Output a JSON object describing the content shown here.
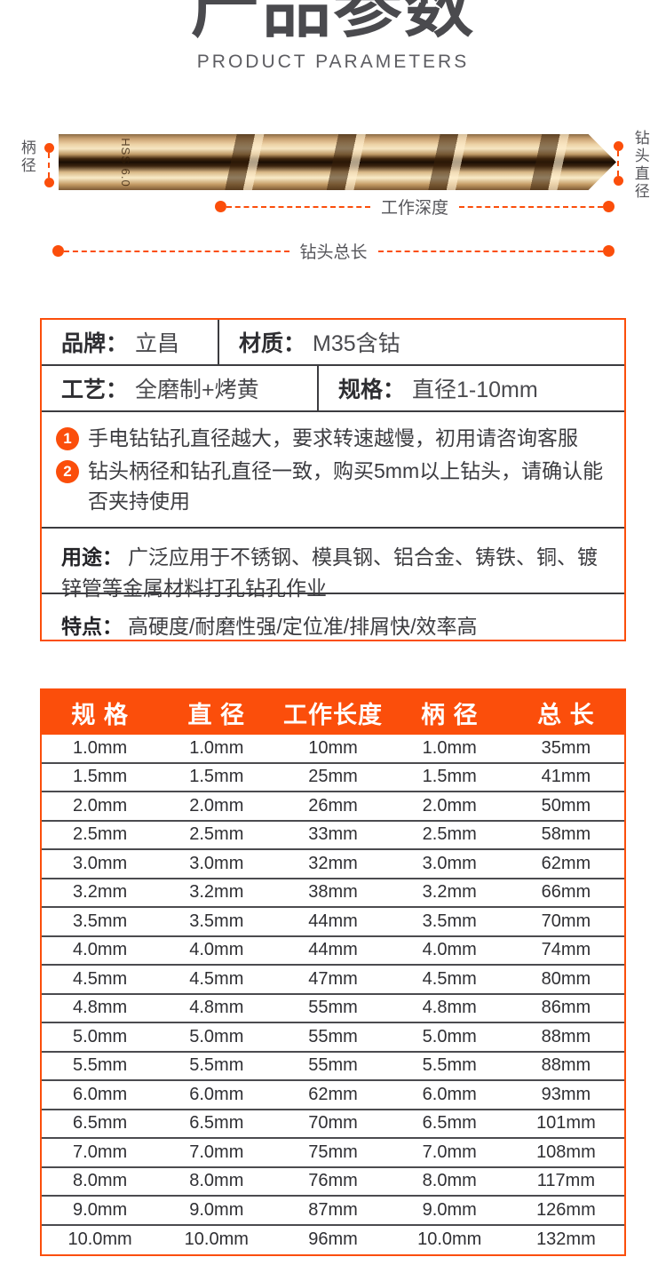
{
  "colors": {
    "accent": "#fb4e0b",
    "title": "#4a4a4e",
    "row_divider": "#4b4b4f"
  },
  "header": {
    "title": "产品参数",
    "subtitle": "PRODUCT PARAMETERS"
  },
  "diagram": {
    "shank_diameter_label": "柄径",
    "tip_diameter_label": "钻头直径",
    "working_depth_label": "工作深度",
    "total_length_label": "钻头总长",
    "bit_marking": "HSS 6.0"
  },
  "info": {
    "brand_label": "品牌：",
    "brand_value": "立昌",
    "material_label": "材质：",
    "material_value": "M35含钴",
    "process_label": "工艺：",
    "process_value": "全磨制+烤黄",
    "spec_label": "规格：",
    "spec_value": "直径1-10mm",
    "notes": [
      {
        "num": "1",
        "text": "手电钻钻孔直径越大，要求转速越慢，初用请咨询客服"
      },
      {
        "num": "2",
        "text": "钻头柄径和钻孔直径一致，购买5mm以上钻头，请确认能否夹持使用"
      }
    ],
    "usage_label": "用途：",
    "usage_value": "广泛应用于不锈钢、模具钢、铝合金、铸铁、铜、镀锌管等金属材料打孔钻孔作业",
    "features_label": "特点：",
    "features_value": "高硬度/耐磨性强/定位准/排屑快/效率高"
  },
  "spec_table": {
    "headers": [
      "规 格",
      "直 径",
      "工作长度",
      "柄 径",
      "总 长"
    ],
    "rows": [
      [
        "1.0mm",
        "1.0mm",
        "10mm",
        "1.0mm",
        "35mm"
      ],
      [
        "1.5mm",
        "1.5mm",
        "25mm",
        "1.5mm",
        "41mm"
      ],
      [
        "2.0mm",
        "2.0mm",
        "26mm",
        "2.0mm",
        "50mm"
      ],
      [
        "2.5mm",
        "2.5mm",
        "33mm",
        "2.5mm",
        "58mm"
      ],
      [
        "3.0mm",
        "3.0mm",
        "32mm",
        "3.0mm",
        "62mm"
      ],
      [
        "3.2mm",
        "3.2mm",
        "38mm",
        "3.2mm",
        "66mm"
      ],
      [
        "3.5mm",
        "3.5mm",
        "44mm",
        "3.5mm",
        "70mm"
      ],
      [
        "4.0mm",
        "4.0mm",
        "44mm",
        "4.0mm",
        "74mm"
      ],
      [
        "4.5mm",
        "4.5mm",
        "47mm",
        "4.5mm",
        "80mm"
      ],
      [
        "4.8mm",
        "4.8mm",
        "55mm",
        "4.8mm",
        "86mm"
      ],
      [
        "5.0mm",
        "5.0mm",
        "55mm",
        "5.0mm",
        "88mm"
      ],
      [
        "5.5mm",
        "5.5mm",
        "55mm",
        "5.5mm",
        "88mm"
      ],
      [
        "6.0mm",
        "6.0mm",
        "62mm",
        "6.0mm",
        "93mm"
      ],
      [
        "6.5mm",
        "6.5mm",
        "70mm",
        "6.5mm",
        "101mm"
      ],
      [
        "7.0mm",
        "7.0mm",
        "75mm",
        "7.0mm",
        "108mm"
      ],
      [
        "8.0mm",
        "8.0mm",
        "76mm",
        "8.0mm",
        "117mm"
      ],
      [
        "9.0mm",
        "9.0mm",
        "87mm",
        "9.0mm",
        "126mm"
      ],
      [
        "10.0mm",
        "10.0mm",
        "96mm",
        "10.0mm",
        "132mm"
      ]
    ]
  }
}
